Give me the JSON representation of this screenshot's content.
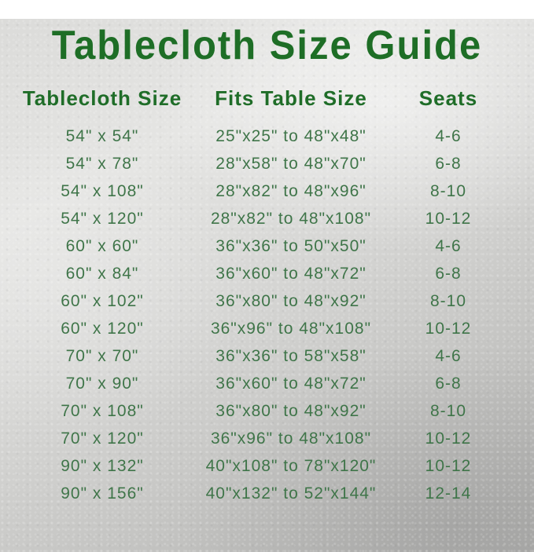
{
  "title": "Tablecloth Size Guide",
  "colors": {
    "title_green": "#1e6e26",
    "header_green": "#1f6d28",
    "row_green": "#3f7549",
    "background_light": "#e5e5e3",
    "background_dark": "#b1b1af"
  },
  "table": {
    "headers": [
      "Tablecloth Size",
      "Fits Table Size",
      "Seats"
    ],
    "rows": [
      [
        "54\" x 54\"",
        "25\"x25\" to 48\"x48\"",
        "4-6"
      ],
      [
        "54\" x 78\"",
        "28\"x58\" to 48\"x70\"",
        "6-8"
      ],
      [
        "54\" x 108\"",
        "28\"x82\" to 48\"x96\"",
        "8-10"
      ],
      [
        "54\" x 120\"",
        "28\"x82\" to 48\"x108\"",
        "10-12"
      ],
      [
        "60\" x 60\"",
        "36\"x36\" to 50\"x50\"",
        "4-6"
      ],
      [
        "60\" x 84\"",
        "36\"x60\" to 48\"x72\"",
        "6-8"
      ],
      [
        "60\" x 102\"",
        "36\"x80\" to 48\"x92\"",
        "8-10"
      ],
      [
        "60\" x 120\"",
        "36\"x96\" to 48\"x108\"",
        "10-12"
      ],
      [
        "70\" x 70\"",
        "36\"x36\" to 58\"x58\"",
        "4-6"
      ],
      [
        "70\" x 90\"",
        "36\"x60\" to 48\"x72\"",
        "6-8"
      ],
      [
        "70\" x 108\"",
        "36\"x80\" to 48\"x92\"",
        "8-10"
      ],
      [
        "70\" x 120\"",
        "36\"x96\" to 48\"x108\"",
        "10-12"
      ],
      [
        "90\" x 132\"",
        "40\"x108\" to 78\"x120\"",
        "10-12"
      ],
      [
        "90\" x 156\"",
        "40\"x132\" to 52\"x144\"",
        "12-14"
      ]
    ]
  }
}
